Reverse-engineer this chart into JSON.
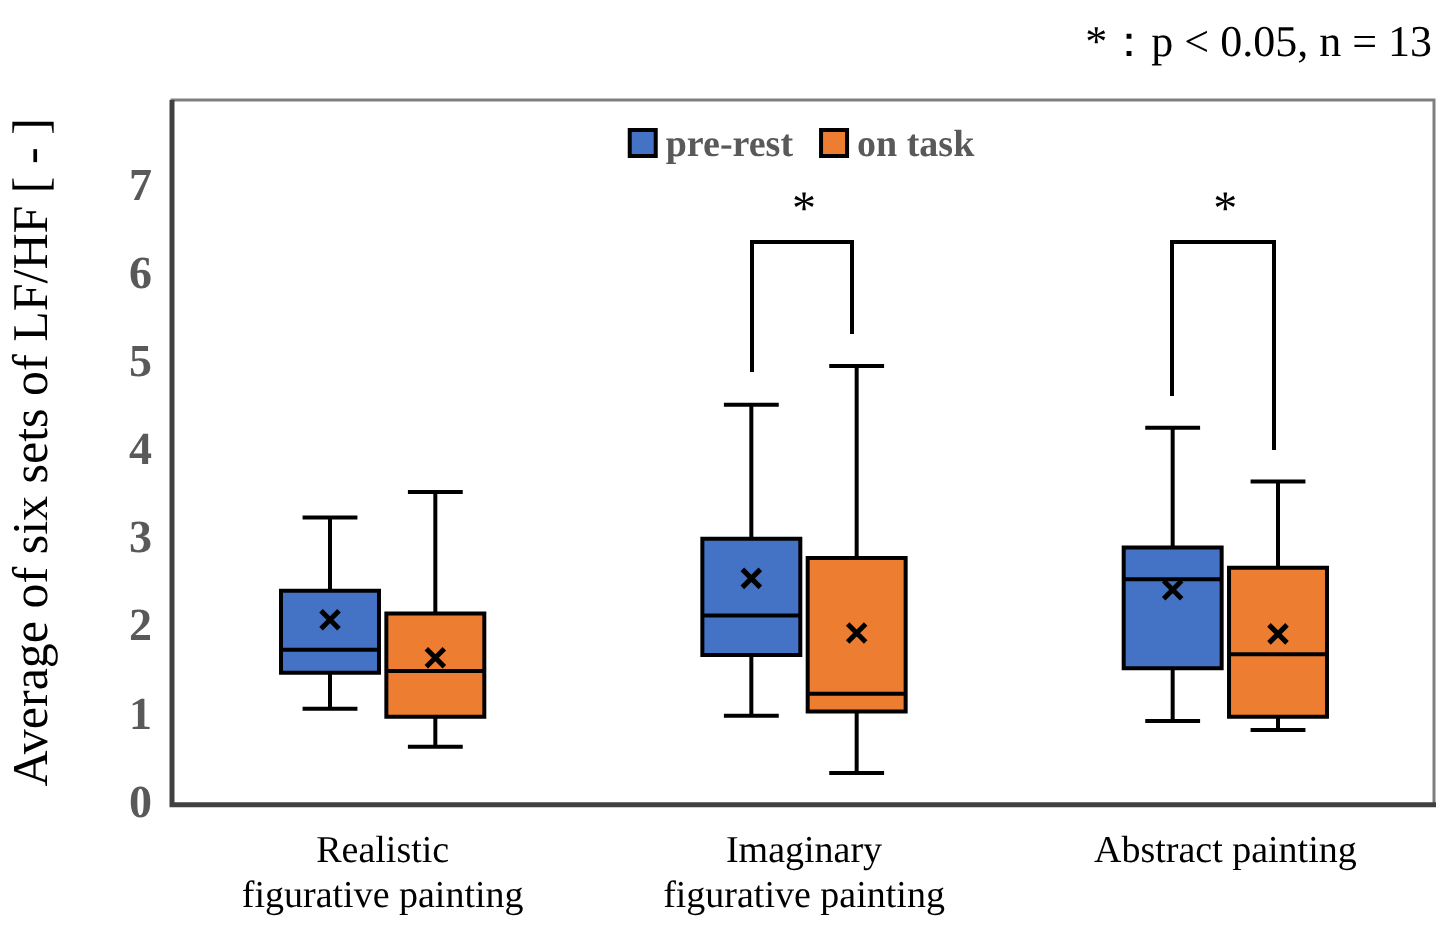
{
  "chart_data": {
    "type": "box",
    "ylabel": "Average of six sets of LF/HF [ - ]",
    "categories": [
      "Realistic figurative painting",
      "Imaginary figurative painting",
      "Abstract painting"
    ],
    "series": [
      {
        "name": "pre-rest",
        "color": "#4472c4",
        "boxes": [
          {
            "low": 1.09,
            "q1": 1.5,
            "median": 1.76,
            "q3": 2.43,
            "high": 3.26,
            "mean": 2.1
          },
          {
            "low": 1.01,
            "q1": 1.7,
            "median": 2.15,
            "q3": 3.02,
            "high": 4.54,
            "mean": 2.57
          },
          {
            "low": 0.95,
            "q1": 1.55,
            "median": 2.56,
            "q3": 2.92,
            "high": 4.28,
            "mean": 2.44
          }
        ]
      },
      {
        "name": "on task",
        "color": "#ed7d31",
        "boxes": [
          {
            "low": 0.66,
            "q1": 1.0,
            "median": 1.52,
            "q3": 2.17,
            "high": 3.55,
            "mean": 1.67
          },
          {
            "low": 0.36,
            "q1": 1.06,
            "median": 1.26,
            "q3": 2.8,
            "high": 4.98,
            "mean": 1.95
          },
          {
            "low": 0.85,
            "q1": 1.0,
            "median": 1.71,
            "q3": 2.69,
            "high": 3.67,
            "mean": 1.94
          }
        ]
      }
    ],
    "ylim": [
      0,
      8
    ],
    "yticks": [
      0,
      1,
      2,
      3,
      4,
      5,
      6,
      7
    ],
    "grid": false,
    "legend": "top",
    "annotations": [
      "*：p < 0.05, n = 13",
      "*",
      "*"
    ]
  }
}
